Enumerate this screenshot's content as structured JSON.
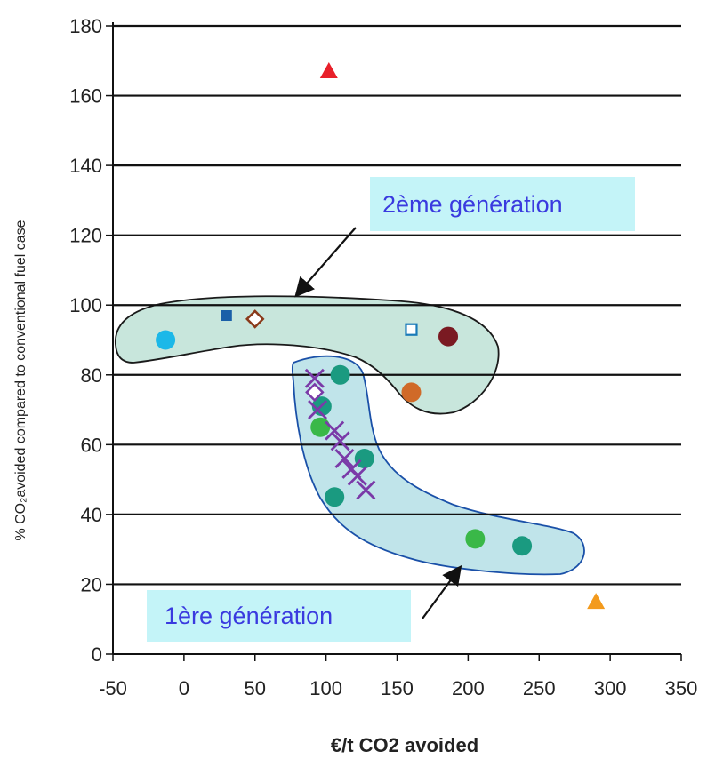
{
  "chart_data": {
    "type": "scatter",
    "title": "",
    "xlabel": "€/t CO2 avoided",
    "ylabel": "% CO₂avoided compared to conventional fuel case",
    "xlim": [
      -50,
      350
    ],
    "ylim": [
      0,
      180
    ],
    "xticks": [
      "-50",
      "0",
      "50",
      "100",
      "150",
      "200",
      "250",
      "300",
      "350"
    ],
    "yticks": [
      "0",
      "20",
      "40",
      "60",
      "80",
      "100",
      "120",
      "140",
      "160",
      "180"
    ],
    "grid": "horizontal",
    "legend": "none",
    "points": [
      {
        "x": 102,
        "y": 167,
        "marker": "triangle",
        "color": "#e8202a"
      },
      {
        "x": 290,
        "y": 15,
        "marker": "triangle",
        "color": "#f39a1c"
      },
      {
        "x": -13,
        "y": 90,
        "marker": "circle",
        "color": "#1cb8e8"
      },
      {
        "x": 30,
        "y": 97,
        "marker": "square",
        "color": "#1a5fa8"
      },
      {
        "x": 50,
        "y": 96,
        "marker": "diamond-open",
        "color": "#8a3a1a"
      },
      {
        "x": 160,
        "y": 93,
        "marker": "square-open",
        "color": "#1a7ab8"
      },
      {
        "x": 186,
        "y": 91,
        "marker": "circle",
        "color": "#7a1a22"
      },
      {
        "x": 160,
        "y": 75,
        "marker": "circle",
        "color": "#d06a28"
      },
      {
        "x": 110,
        "y": 80,
        "marker": "circle",
        "color": "#1a9a80"
      },
      {
        "x": 97,
        "y": 71,
        "marker": "circle",
        "color": "#1a9a80"
      },
      {
        "x": 96,
        "y": 65,
        "marker": "circle",
        "color": "#3ab848"
      },
      {
        "x": 127,
        "y": 56,
        "marker": "circle",
        "color": "#1a9a80"
      },
      {
        "x": 106,
        "y": 45,
        "marker": "circle",
        "color": "#1a9a80"
      },
      {
        "x": 205,
        "y": 33,
        "marker": "circle",
        "color": "#3ab848"
      },
      {
        "x": 238,
        "y": 31,
        "marker": "circle",
        "color": "#1a9a80"
      },
      {
        "x": 92,
        "y": 79,
        "marker": "x",
        "color": "#7a3aa8"
      },
      {
        "x": 92,
        "y": 75,
        "marker": "diamond-open",
        "color": "#7a3aa8"
      },
      {
        "x": 94,
        "y": 70,
        "marker": "x",
        "color": "#7a3aa8"
      },
      {
        "x": 106,
        "y": 64,
        "marker": "x",
        "color": "#7a3aa8"
      },
      {
        "x": 110,
        "y": 61,
        "marker": "x",
        "color": "#7a3aa8"
      },
      {
        "x": 113,
        "y": 56,
        "marker": "x",
        "color": "#7a3aa8"
      },
      {
        "x": 118,
        "y": 53,
        "marker": "x",
        "color": "#7a3aa8"
      },
      {
        "x": 122,
        "y": 51,
        "marker": "x",
        "color": "#7a3aa8"
      },
      {
        "x": 128,
        "y": 47,
        "marker": "x",
        "color": "#7a3aa8"
      }
    ],
    "annotations": [
      {
        "label": "2ème génération",
        "box_fill": "#c4f4f8",
        "text_color": "#3a3adf"
      },
      {
        "label": "1ère génération",
        "box_fill": "#c4f4f8",
        "text_color": "#3a3adf"
      }
    ],
    "regions": [
      {
        "name": "2ème génération region",
        "fill": "#c8e6dc"
      },
      {
        "name": "1ère génération region",
        "fill": "#c0e4ea"
      }
    ]
  }
}
